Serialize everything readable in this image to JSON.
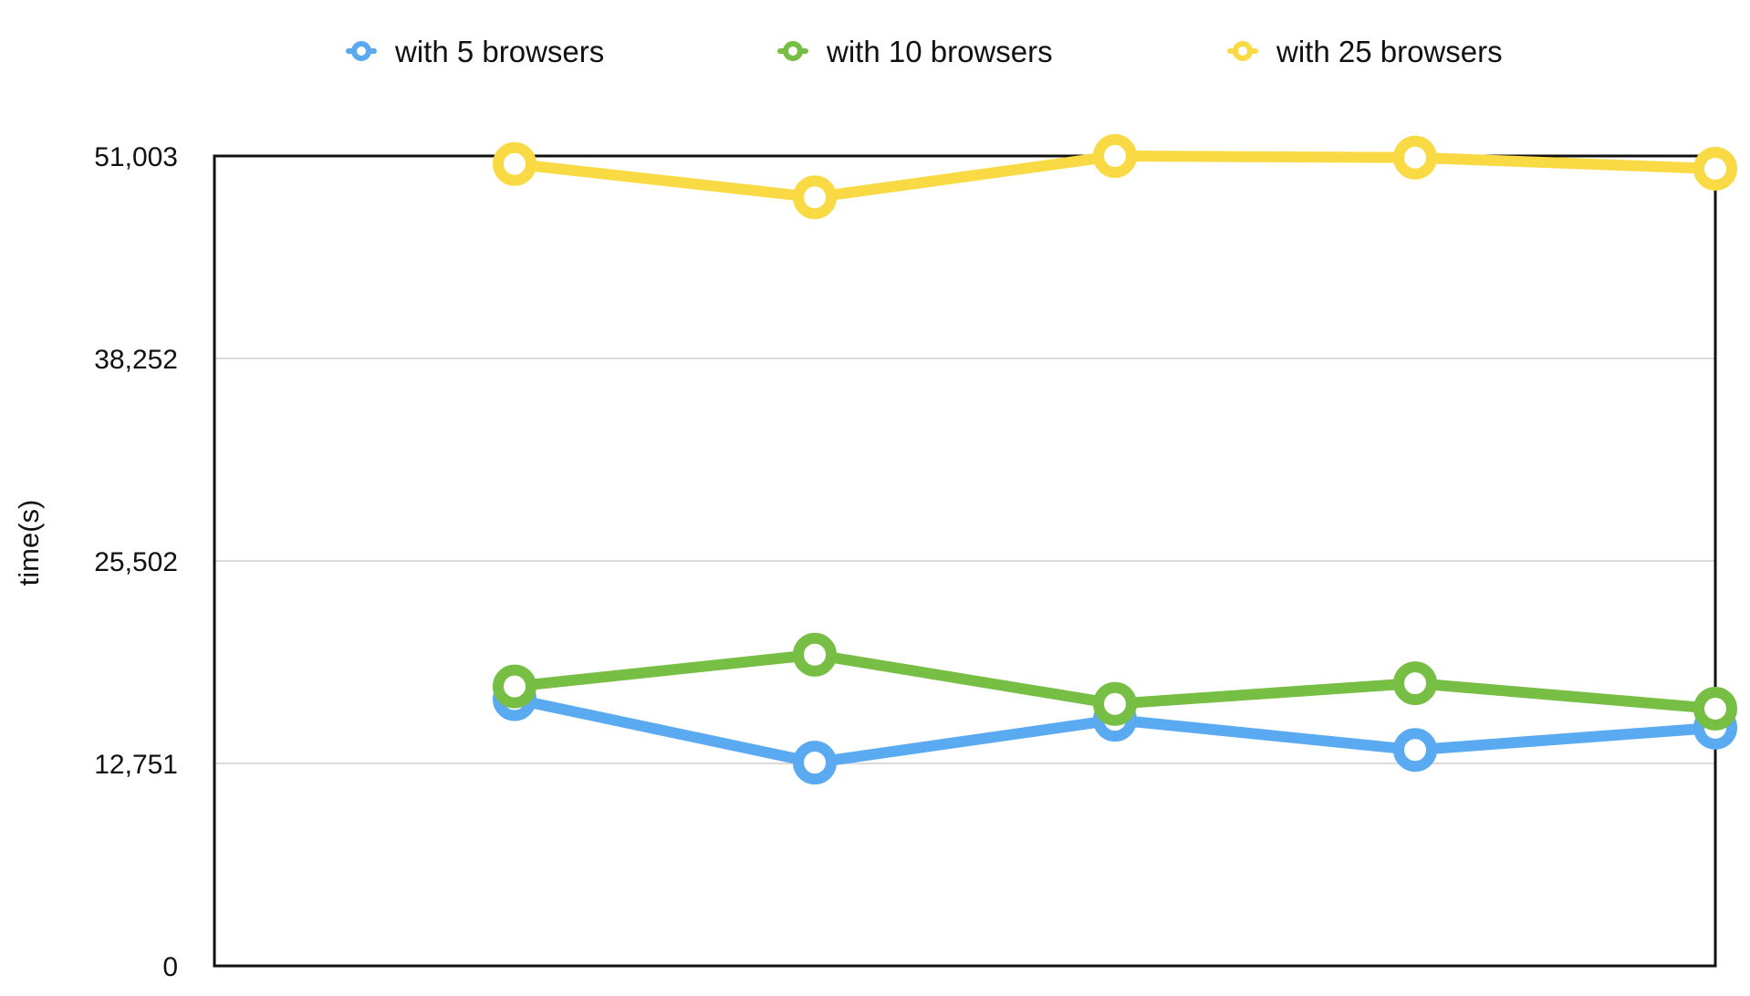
{
  "chart_data": {
    "type": "line",
    "title": "",
    "xlabel": "",
    "ylabel": "time(s)",
    "x": [
      1,
      2,
      3,
      4,
      5
    ],
    "yticks": [
      0,
      12751,
      25502,
      38252,
      51003
    ],
    "ytick_labels": [
      "0",
      "12,751",
      "25,502",
      "38,252",
      "51,003"
    ],
    "ylim": [
      0,
      51003
    ],
    "xlim": [
      0,
      5
    ],
    "grid": true,
    "legend_position": "top",
    "series": [
      {
        "name": "with 5 browsers",
        "color": "#5AAAF2",
        "values": [
          16800,
          12800,
          15500,
          13600,
          15000
        ]
      },
      {
        "name": "with 10 browsers",
        "color": "#77BE45",
        "values": [
          17600,
          19600,
          16500,
          17800,
          16200
        ]
      },
      {
        "name": "with 25 browsers",
        "color": "#F9DA44",
        "values": [
          50500,
          48400,
          51000,
          50900,
          50200
        ]
      }
    ]
  }
}
